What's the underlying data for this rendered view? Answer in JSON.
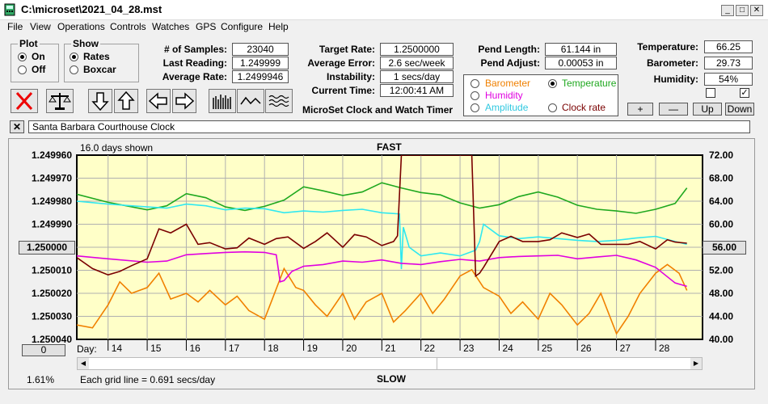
{
  "window": {
    "title": "C:\\microset\\2021_04_28.mst",
    "min": "_",
    "max": "□",
    "close": "✕"
  },
  "menu": [
    "File",
    "View",
    "Operations",
    "Controls",
    "Watches",
    "GPS",
    "Configure",
    "Help"
  ],
  "plot": {
    "title": "Plot",
    "on": "On",
    "off": "Off",
    "selected": "On"
  },
  "show": {
    "title": "Show",
    "rates": "Rates",
    "boxcar": "Boxcar",
    "selected": "Rates"
  },
  "stats": {
    "samples_label": "# of Samples:",
    "samples": "23040",
    "last_label": "Last Reading:",
    "last": "1.249999",
    "avg_label": "Average Rate:",
    "avg": "1.2499946"
  },
  "rates": {
    "target_label": "Target Rate:",
    "target": "1.2500000",
    "error_label": "Average Error:",
    "error": "2.6 sec/week",
    "instab_label": "Instability:",
    "instab": "1 secs/day",
    "time_label": "Current Time:",
    "time": "12:00:41 AM"
  },
  "pend": {
    "length_label": "Pend Length:",
    "length": "61.144 in",
    "adjust_label": "Pend Adjust:",
    "adjust": "0.00053 in"
  },
  "sensors": {
    "temp_label": "Temperature:",
    "temp": "66.25",
    "baro_label": "Barometer:",
    "baro": "29.73",
    "hum_label": "Humidity:",
    "hum": "54%"
  },
  "app_title": "MicroSet Clock and Watch Timer",
  "overlay": {
    "barometer": "Barometer",
    "temperature": "Temperature",
    "humidity": "Humidity",
    "amplitude": "Amplitude",
    "clock_rate": "Clock rate",
    "selected": "Temperature"
  },
  "scale_buttons": {
    "plus": "+",
    "minus": "—",
    "up": "Up",
    "down": "Down"
  },
  "clear_btn": "✕",
  "clock_name": "Santa Barbara Courthouse Clock",
  "colors": {
    "barometer": "#f08000",
    "temperature": "#1fa81f",
    "humidity": "#e000e0",
    "amplitude": "#30e8f0",
    "clock_rate": "#7a0000",
    "plot_bg": "#ffffc8"
  },
  "chart_data": {
    "type": "line",
    "days_shown": "16.0 days shown",
    "top_label": "FAST",
    "bottom_label": "SLOW",
    "grid_note": "Each grid line = 0.691 secs/day",
    "percent": "1.61%",
    "day_prefix": "Day:",
    "left_ticks": [
      "1.249960",
      "1.249970",
      "1.249980",
      "1.249990",
      "1.250000",
      "1.250010",
      "1.250020",
      "1.250030",
      "1.250040"
    ],
    "right_ticks": [
      "72.00",
      "68.00",
      "64.00",
      "60.00",
      "56.00",
      "52.00",
      "48.00",
      "44.00",
      "40.00"
    ],
    "left_center": "1.250000",
    "right_center": "56.00",
    "left_bottom_btn": "0",
    "x_days": [
      "14",
      "15",
      "16",
      "17",
      "18",
      "19",
      "20",
      "21",
      "22",
      "23",
      "24",
      "25",
      "26",
      "27",
      "28"
    ],
    "x_range": [
      13.2,
      29.2
    ],
    "temp_ylim": [
      40,
      72
    ],
    "rate_ylim": [
      1.24996,
      1.25004
    ],
    "series": [
      {
        "name": "Temperature",
        "key": "temperature",
        "x": [
          13.2,
          14,
          15,
          15.5,
          16,
          16.5,
          17,
          17.5,
          18,
          18.5,
          19,
          19.5,
          20,
          20.5,
          21,
          21.5,
          22,
          22.5,
          23,
          23.5,
          24,
          24.5,
          25,
          25.5,
          26,
          26.5,
          27,
          27.5,
          28,
          28.5,
          28.8
        ],
        "y": [
          65.2,
          63.8,
          62.5,
          63.2,
          65.3,
          64.6,
          63.0,
          62.4,
          63.1,
          64.2,
          66.5,
          65.8,
          65.0,
          65.6,
          67.2,
          66.3,
          65.5,
          65.1,
          63.7,
          62.8,
          63.4,
          64.8,
          65.6,
          64.7,
          63.3,
          62.6,
          62.3,
          61.9,
          62.6,
          63.6,
          66.3
        ]
      },
      {
        "name": "Barometer",
        "key": "barometer",
        "x": [
          13.2,
          13.6,
          14,
          14.3,
          14.6,
          15,
          15.3,
          15.6,
          16,
          16.3,
          16.6,
          17,
          17.3,
          17.6,
          18,
          18.2,
          18.5,
          18.8,
          19,
          19.3,
          19.6,
          20,
          20.3,
          20.6,
          21,
          21.3,
          21.6,
          22,
          22.3,
          22.6,
          23,
          23.3,
          23.6,
          24,
          24.3,
          24.6,
          25,
          25.3,
          25.6,
          26,
          26.3,
          26.6,
          27,
          27.3,
          27.6,
          28,
          28.3,
          28.6,
          28.8
        ],
        "y": [
          42.5,
          42,
          46,
          50,
          48,
          49,
          51.5,
          47,
          48,
          46.5,
          48.5,
          46,
          47.5,
          45,
          43.5,
          47,
          52.3,
          49,
          48.5,
          46,
          44,
          48,
          43.5,
          46.5,
          48,
          43,
          45,
          48,
          44.5,
          47,
          51,
          52.1,
          49,
          47.5,
          44.5,
          46.5,
          43.5,
          48,
          46,
          42.5,
          44.5,
          48,
          41,
          44,
          48,
          51.5,
          53,
          51.5,
          48.5
        ]
      },
      {
        "name": "Amplitude",
        "key": "amplitude",
        "x": [
          13.2,
          14,
          15,
          15.5,
          16,
          16.5,
          17,
          17.5,
          18,
          18.5,
          19,
          19.5,
          20,
          20.5,
          21,
          21.45,
          21.5,
          21.55,
          21.7,
          22,
          22.5,
          23,
          23.4,
          23.5,
          23.6,
          24,
          24.5,
          25,
          25.5,
          26,
          26.5,
          27,
          27.5,
          28,
          28.5,
          28.8
        ],
        "y": [
          64.0,
          63.5,
          63.0,
          62.8,
          63.5,
          63.2,
          62.5,
          62.8,
          62.7,
          62.0,
          62.3,
          62.1,
          62.4,
          62.6,
          62.0,
          61.8,
          52.2,
          59.5,
          56.0,
          54.5,
          55.0,
          54.5,
          55.5,
          57.0,
          60.0,
          58.0,
          57.5,
          57.8,
          57.5,
          57.2,
          57.0,
          57.2,
          57.6,
          57.9,
          57.0,
          56.5
        ]
      },
      {
        "name": "Humidity",
        "key": "humidity",
        "x": [
          13.2,
          14,
          15,
          15.5,
          16,
          16.5,
          17,
          17.5,
          18,
          18.3,
          18.4,
          18.5,
          18.7,
          19,
          19.5,
          20,
          20.5,
          21,
          21.5,
          22,
          22.5,
          23,
          23.5,
          24,
          24.5,
          25,
          25.5,
          26,
          26.5,
          27,
          27.5,
          28,
          28.5,
          28.8
        ],
        "y": [
          54.5,
          54.0,
          53.4,
          53.6,
          54.7,
          54.9,
          55.1,
          55.2,
          55.1,
          54.7,
          50.0,
          50.2,
          51.8,
          52.7,
          53.0,
          53.6,
          53.4,
          53.8,
          53.2,
          53.0,
          53.5,
          53.9,
          53.6,
          54.2,
          54.4,
          54.5,
          54.6,
          54.0,
          54.3,
          54.6,
          53.8,
          52.5,
          49.8,
          49.2
        ]
      },
      {
        "name": "Clock rate",
        "key": "clock_rate",
        "x": [
          13.2,
          13.6,
          14,
          14.3,
          14.6,
          15,
          15.3,
          15.6,
          16,
          16.3,
          16.6,
          17,
          17.3,
          17.6,
          18,
          18.3,
          18.6,
          19,
          19.3,
          19.6,
          20,
          20.3,
          20.6,
          21,
          21.3,
          21.4,
          21.5,
          21.6,
          22,
          22.5,
          23,
          23.3,
          23.4,
          23.5,
          23.6,
          24,
          24.3,
          24.6,
          25,
          25.3,
          25.6,
          26,
          26.3,
          26.6,
          27,
          27.3,
          27.6,
          28,
          28.3,
          28.5,
          28.8
        ],
        "y": [
          54.2,
          52.3,
          51.2,
          51.8,
          52.8,
          54.0,
          59.2,
          58.5,
          60.0,
          56.5,
          56.8,
          55.7,
          55.9,
          57.6,
          56.5,
          57.5,
          57.8,
          55.8,
          57.0,
          58.5,
          56.0,
          58.2,
          57.8,
          56.3,
          57.0,
          58.0,
          72.0,
          72.0,
          72.0,
          72.0,
          72.0,
          72.0,
          51.0,
          51.5,
          52.5,
          57.0,
          57.9,
          57.0,
          57.0,
          57.3,
          58.5,
          57.7,
          58.3,
          56.5,
          56.5,
          56.5,
          57.0,
          55.7,
          57.3,
          56.9,
          56.7
        ]
      }
    ]
  }
}
